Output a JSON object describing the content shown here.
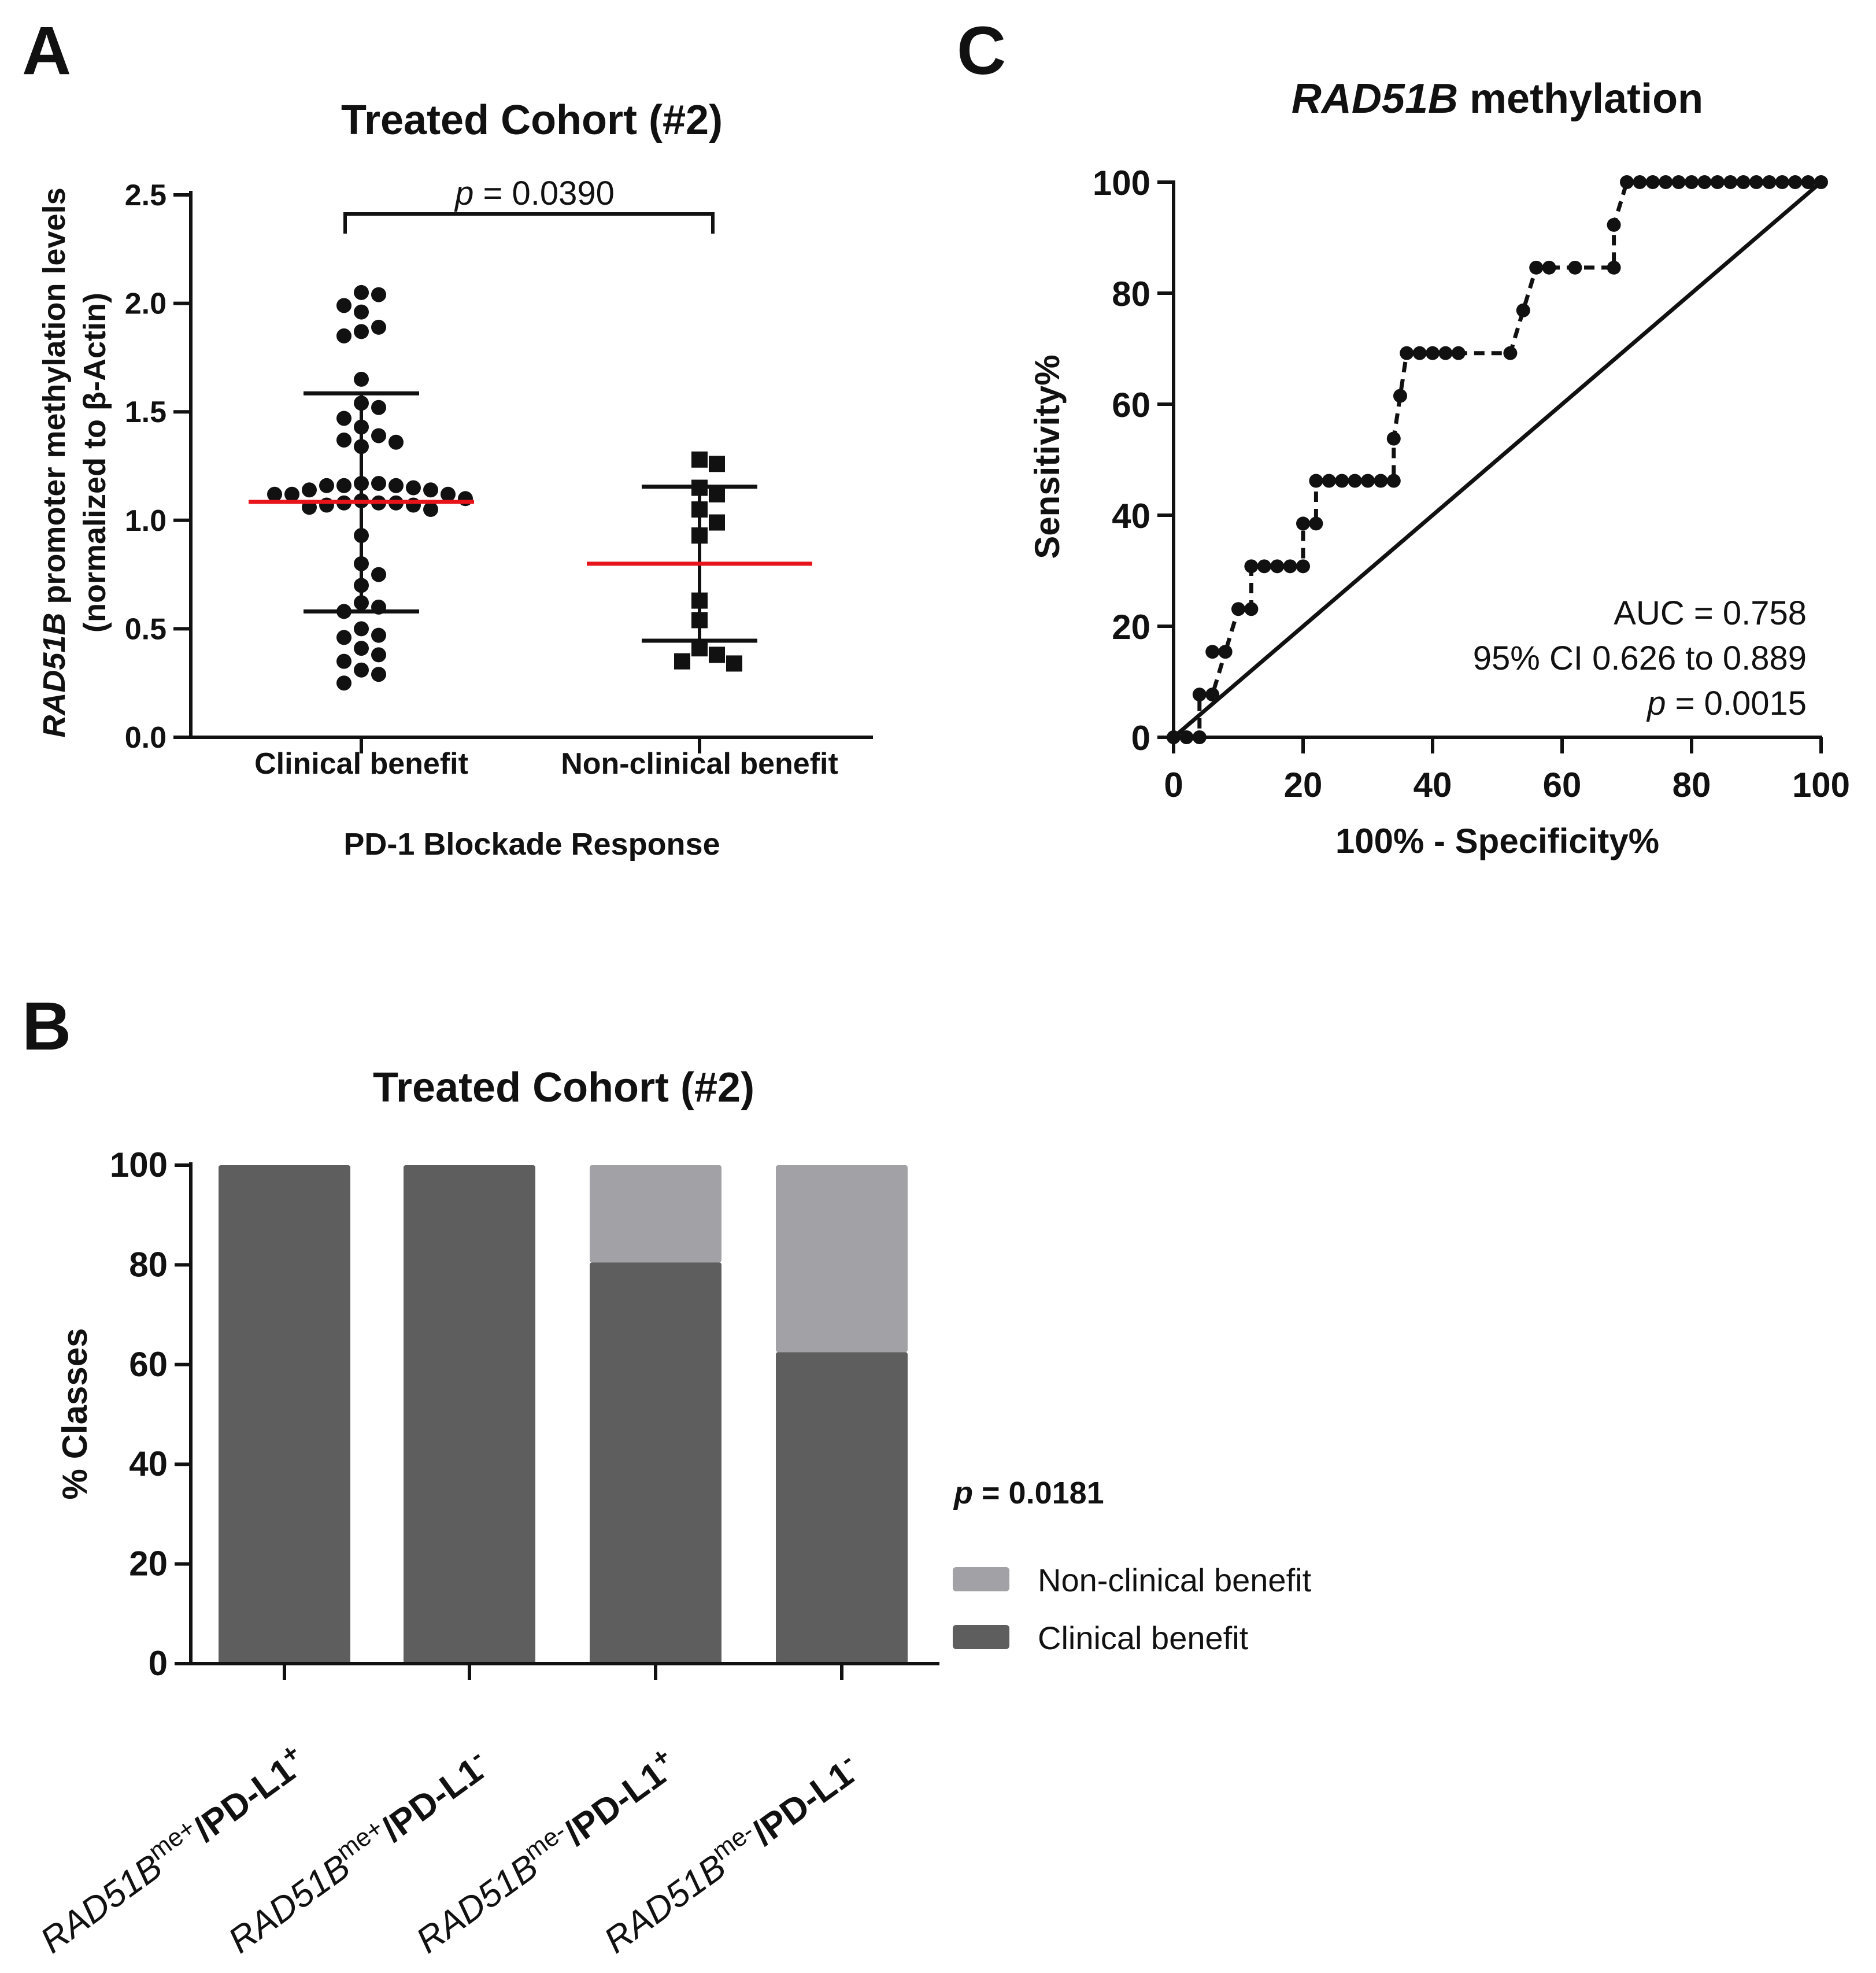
{
  "panels": {
    "A": {
      "letter": "A",
      "chart_data": {
        "type": "scatter",
        "title": "Treated Cohort (#2)",
        "ylabel_italic": "RAD51B",
        "ylabel_line1": " promoter methylation levels",
        "ylabel_line2": "(normalized to β-Actin)",
        "xlabel": "PD-1 Blockade Response",
        "categories": [
          "Clinical benefit",
          "Non-clinical benefit"
        ],
        "ylim": [
          0,
          2.5
        ],
        "yticks": [
          "0.0",
          "0.5",
          "1.0",
          "1.5",
          "2.0",
          "2.5"
        ],
        "groups": [
          {
            "name": "Clinical benefit",
            "marker": "circle",
            "mean": 1.085,
            "sd_upper": 1.585,
            "sd_lower": 0.58,
            "values": [
              2.05,
              2.04,
              1.96,
              1.99,
              1.87,
              1.89,
              1.85,
              1.65,
              1.54,
              1.47,
              1.52,
              1.43,
              1.37,
              1.39,
              1.34,
              1.36,
              1.17,
              1.16,
              1.12,
              1.14,
              1.12,
              1.15,
              1.16,
              1.17,
              1.16,
              1.14,
              1.12,
              1.09,
              1.08,
              1.07,
              1.08,
              1.1,
              1.08,
              1.06,
              1.07,
              1.05,
              0.93,
              0.8,
              0.75,
              0.7,
              0.62,
              0.6,
              0.58,
              0.5,
              0.47,
              0.46,
              0.41,
              0.38,
              0.35,
              0.31,
              0.29,
              0.25
            ]
          },
          {
            "name": "Non-clinical benefit",
            "marker": "square",
            "mean": 0.8,
            "sd_upper": 1.155,
            "sd_lower": 0.445,
            "values": [
              1.28,
              1.26,
              1.15,
              1.12,
              1.05,
              0.99,
              0.93,
              0.63,
              0.54,
              0.41,
              0.38,
              0.34,
              0.35
            ]
          }
        ],
        "annotation_italic": "p",
        "annotation_text": " = 0.0390"
      }
    },
    "B": {
      "letter": "B",
      "chart_data": {
        "type": "bar",
        "stacked": true,
        "title": "Treated Cohort (#2)",
        "ylabel": "% Classes",
        "ylim": [
          0,
          100
        ],
        "yticks": [
          "0",
          "20",
          "40",
          "60",
          "80",
          "100"
        ],
        "categories": [
          {
            "gene": "RAD51B",
            "sup": "me+",
            "sep": "/",
            "marker": "PD-L1",
            "msup": "+"
          },
          {
            "gene": "RAD51B",
            "sup": "me+",
            "sep": "/",
            "marker": "PD-L1",
            "msup": "-"
          },
          {
            "gene": "RAD51B",
            "sup": "me-",
            "sep": "/",
            "marker": "PD-L1",
            "msup": "+"
          },
          {
            "gene": "RAD51B",
            "sup": "me-",
            "sep": "/",
            "marker": "PD-L1",
            "msup": "-"
          }
        ],
        "series": [
          {
            "name": "Clinical benefit",
            "color": "#5e5e5e",
            "values": [
              100,
              100,
              80.5,
              62.5
            ]
          },
          {
            "name": "Non-clinical benefit",
            "color": "#a2a2a6",
            "values": [
              0,
              0,
              19.5,
              37.5
            ]
          }
        ],
        "legend": [
          "Non-clinical benefit",
          "Clinical benefit"
        ],
        "annotation_italic": "p",
        "annotation_text": " = 0.0181"
      }
    },
    "C": {
      "letter": "C",
      "chart_data": {
        "type": "line",
        "title_italic": "RAD51B",
        "title_rest": " methylation",
        "xlabel": "100% - Specificity%",
        "ylabel": "Sensitivity%",
        "xlim": [
          0,
          100
        ],
        "ylim": [
          0,
          100
        ],
        "xticks": [
          "0",
          "20",
          "40",
          "60",
          "80",
          "100"
        ],
        "yticks": [
          "0",
          "20",
          "40",
          "60",
          "80",
          "100"
        ],
        "series": [
          {
            "name": "ROC",
            "style": "dashed",
            "x": [
              0,
              2,
              4,
              4,
              6,
              8,
              6,
              8,
              10,
              12,
              12,
              14,
              16,
              18,
              20,
              20,
              22,
              22,
              24,
              26,
              28,
              30,
              32,
              34,
              34,
              35,
              36,
              38,
              40,
              42,
              44,
              52,
              54,
              56,
              58,
              62,
              68,
              68,
              70,
              72,
              74,
              76,
              78,
              80,
              82,
              84,
              86,
              88,
              90,
              92,
              94,
              96,
              98,
              100
            ],
            "y": [
              0,
              0,
              0,
              7.7,
              7.7,
              15.4,
              15.4,
              15.4,
              23.1,
              23.1,
              30.8,
              30.8,
              30.8,
              30.8,
              30.8,
              38.5,
              38.5,
              46.2,
              46.2,
              46.2,
              46.2,
              46.2,
              46.2,
              46.2,
              53.8,
              61.5,
              69.2,
              69.2,
              69.2,
              69.2,
              69.2,
              69.2,
              76.9,
              84.6,
              84.6,
              84.6,
              84.6,
              92.3,
              100,
              100,
              100,
              100,
              100,
              100,
              100,
              100,
              100,
              100,
              100,
              100,
              100,
              100,
              100,
              100
            ]
          },
          {
            "name": "Reference",
            "style": "solid",
            "x": [
              0,
              100
            ],
            "y": [
              0,
              100
            ]
          }
        ],
        "annotations": {
          "auc": "AUC = 0.758",
          "ci": "95% CI 0.626 to 0.889",
          "p_italic": "p",
          "p_text": " = 0.0015"
        }
      }
    }
  }
}
